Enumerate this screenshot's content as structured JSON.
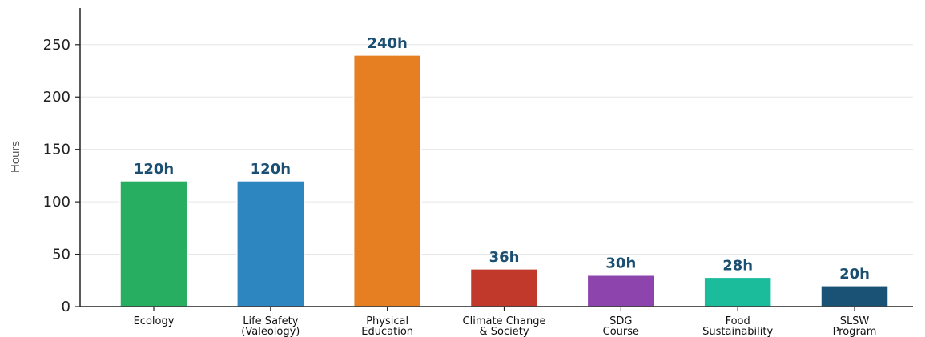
{
  "chart_data": {
    "type": "bar",
    "categories": [
      [
        "Ecology"
      ],
      [
        "Life Safety",
        "(Valeology)"
      ],
      [
        "Physical",
        "Education"
      ],
      [
        "Climate Change",
        "& Society"
      ],
      [
        "SDG",
        "Course"
      ],
      [
        "Food",
        "Sustainability"
      ],
      [
        "SLSW",
        "Program"
      ]
    ],
    "values": [
      120,
      120,
      240,
      36,
      30,
      28,
      20
    ],
    "value_labels": [
      "120h",
      "120h",
      "240h",
      "36h",
      "30h",
      "28h",
      "20h"
    ],
    "colors": [
      "#27ae60",
      "#2e86c1",
      "#e67e22",
      "#c0392b",
      "#8e44ad",
      "#1abc9c",
      "#1a5276"
    ],
    "title": "",
    "xlabel": "",
    "ylabel": "Hours",
    "ylim": [
      0,
      285
    ],
    "yticks": [
      0,
      50,
      100,
      150,
      200,
      250
    ],
    "grid": "horizontal",
    "legend": "none"
  }
}
